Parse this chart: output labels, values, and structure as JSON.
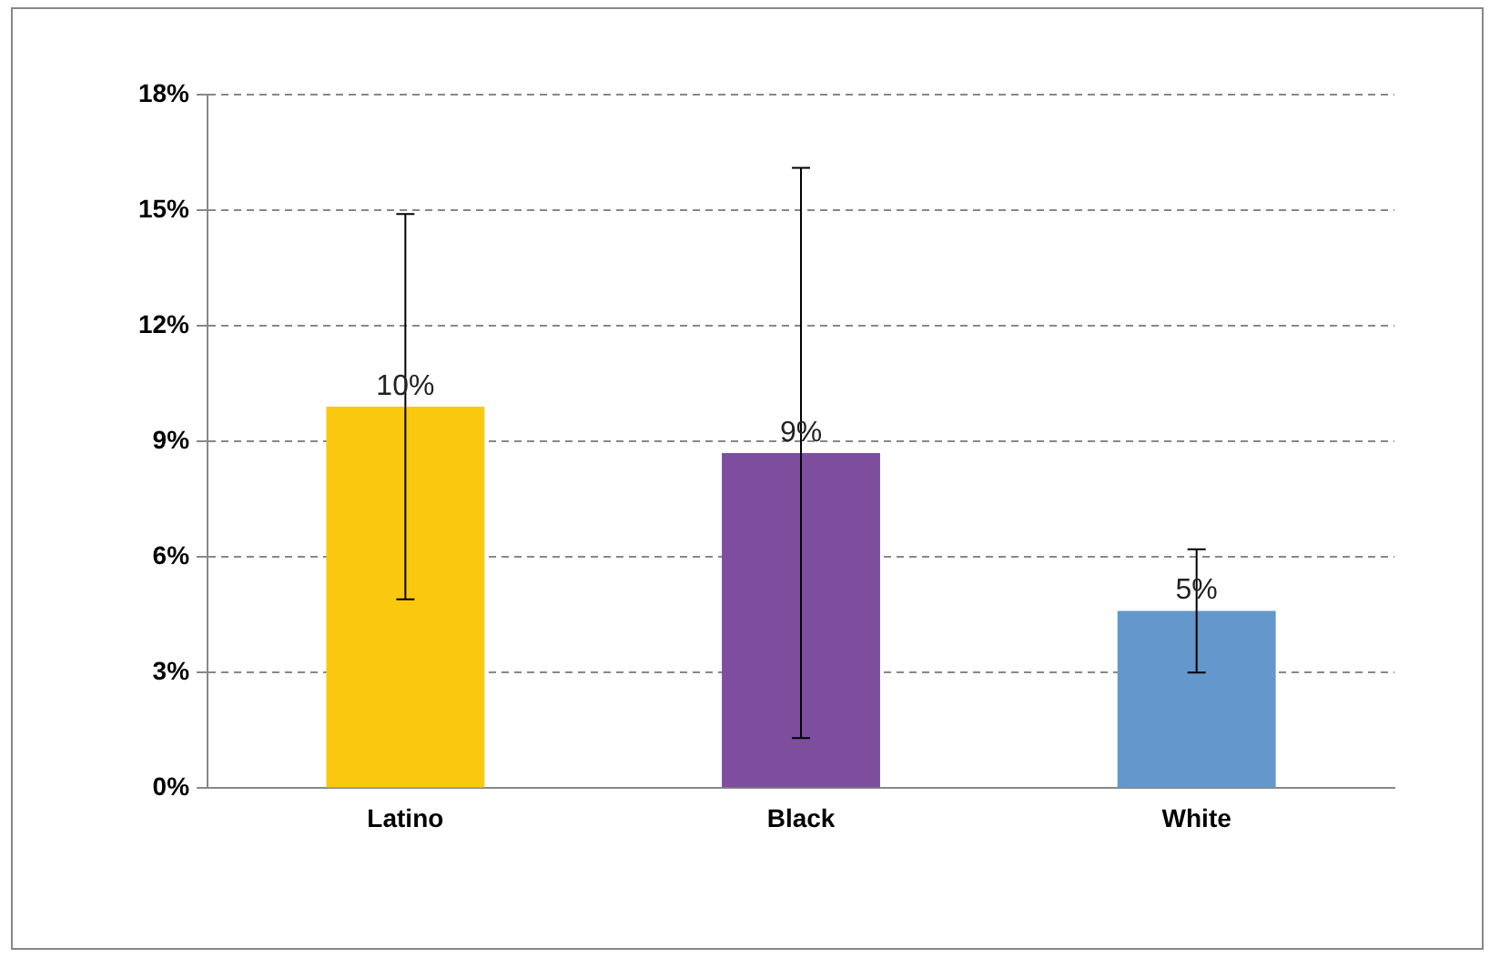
{
  "chart_data": {
    "type": "bar",
    "categories": [
      "Latino",
      "Black",
      "White"
    ],
    "values": [
      9.9,
      8.7,
      4.6
    ],
    "colors": [
      "#fac90f",
      "#7e4e9e",
      "#6497cb"
    ],
    "errors": [
      [
        4.9,
        14.9
      ],
      [
        1.3,
        16.1
      ],
      [
        3.0,
        6.2
      ]
    ],
    "value_labels": [
      "10%",
      "9%",
      "5%"
    ],
    "ylim": [
      0,
      18
    ],
    "yticks": [
      {
        "value": 0,
        "label": "0%"
      },
      {
        "value": 3,
        "label": "3%"
      },
      {
        "value": 6,
        "label": "6%"
      },
      {
        "value": 9,
        "label": "9%"
      },
      {
        "value": 12,
        "label": "12%"
      },
      {
        "value": 15,
        "label": "15%"
      },
      {
        "value": 18,
        "label": "18%"
      }
    ],
    "grid": "y",
    "line_style": "dashed",
    "legend": false
  }
}
